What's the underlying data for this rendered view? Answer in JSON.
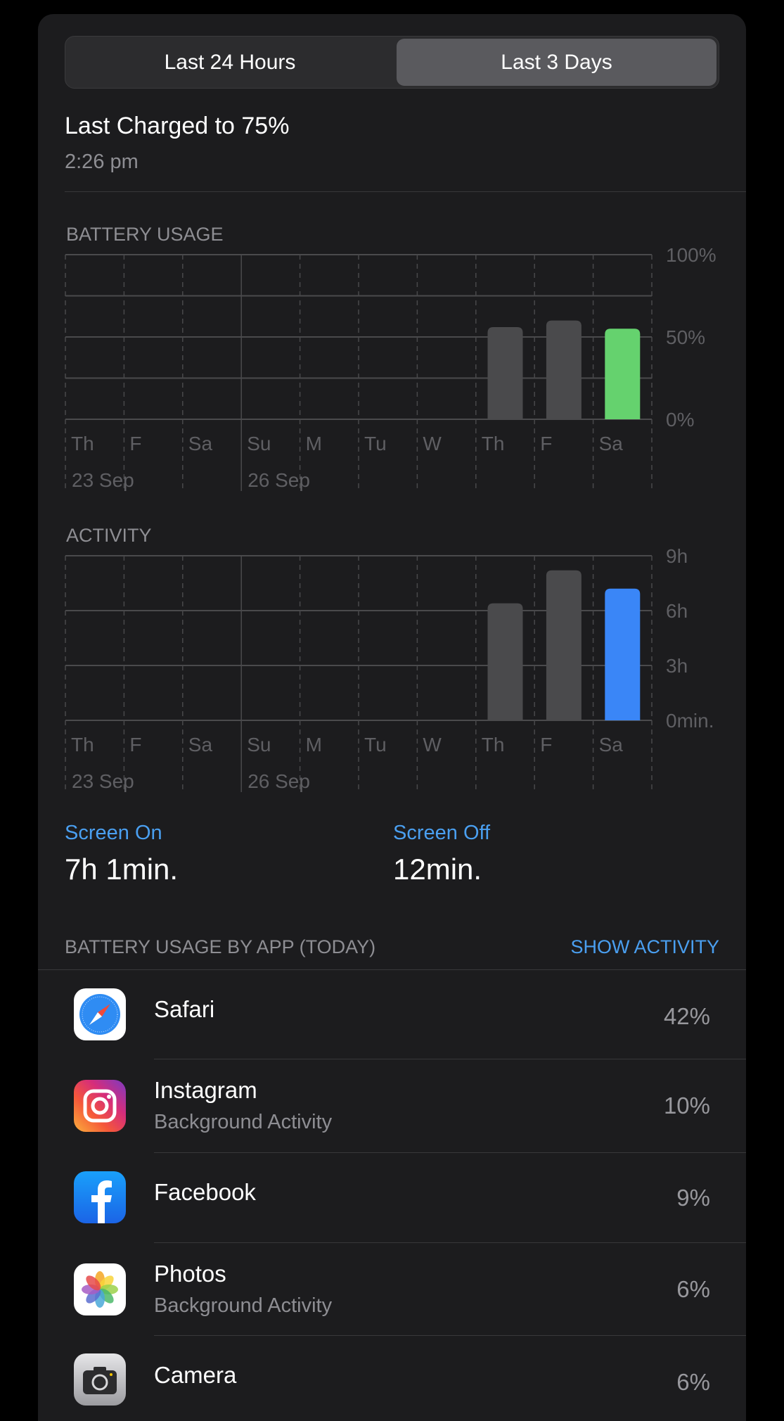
{
  "segmented": {
    "options": [
      "Last 24 Hours",
      "Last 3 Days"
    ],
    "selected": "Last 3 Days"
  },
  "last_charged": {
    "title": "Last Charged to 75%",
    "time": "2:26 pm"
  },
  "colors": {
    "accent_blue": "#4a9ff0",
    "battery_today": "#65d26e",
    "activity_today": "#3a86f7",
    "past_bar": "#4a4a4c"
  },
  "chart_data": [
    {
      "type": "bar",
      "title": "BATTERY USAGE",
      "categories": [
        "Th",
        "F",
        "Sa",
        "Su",
        "M",
        "Tu",
        "W",
        "Th",
        "F",
        "Sa"
      ],
      "date_labels": [
        {
          "index": 0,
          "label": "23 Sep"
        },
        {
          "index": 3,
          "label": "26 Sep"
        }
      ],
      "values": [
        null,
        null,
        null,
        null,
        null,
        null,
        null,
        56,
        60,
        55
      ],
      "yticks": [
        "100%",
        "50%",
        "0%"
      ],
      "ylim": [
        0,
        100
      ],
      "unit": "%",
      "grid": true
    },
    {
      "type": "bar",
      "title": "ACTIVITY",
      "categories": [
        "Th",
        "F",
        "Sa",
        "Su",
        "M",
        "Tu",
        "W",
        "Th",
        "F",
        "Sa"
      ],
      "date_labels": [
        {
          "index": 0,
          "label": "23 Sep"
        },
        {
          "index": 3,
          "label": "26 Sep"
        }
      ],
      "values": [
        null,
        null,
        null,
        null,
        null,
        null,
        null,
        6.4,
        8.2,
        7.2
      ],
      "yticks": [
        "9h",
        "6h",
        "3h",
        "0min."
      ],
      "ylim": [
        0,
        9
      ],
      "unit": "h",
      "grid": true
    }
  ],
  "screen": {
    "on_label": "Screen On",
    "on_value": "7h 1min.",
    "off_label": "Screen Off",
    "off_value": "12min."
  },
  "apps_header": {
    "title": "BATTERY USAGE BY APP (TODAY)",
    "action": "SHOW ACTIVITY"
  },
  "apps": [
    {
      "name": "Safari",
      "sub": "",
      "pct": "42%",
      "icon": "safari-icon"
    },
    {
      "name": "Instagram",
      "sub": "Background Activity",
      "pct": "10%",
      "icon": "instagram-icon"
    },
    {
      "name": "Facebook",
      "sub": "",
      "pct": "9%",
      "icon": "facebook-icon"
    },
    {
      "name": "Photos",
      "sub": "Background Activity",
      "pct": "6%",
      "icon": "photos-icon"
    },
    {
      "name": "Camera",
      "sub": "",
      "pct": "6%",
      "icon": "camera-icon"
    }
  ]
}
